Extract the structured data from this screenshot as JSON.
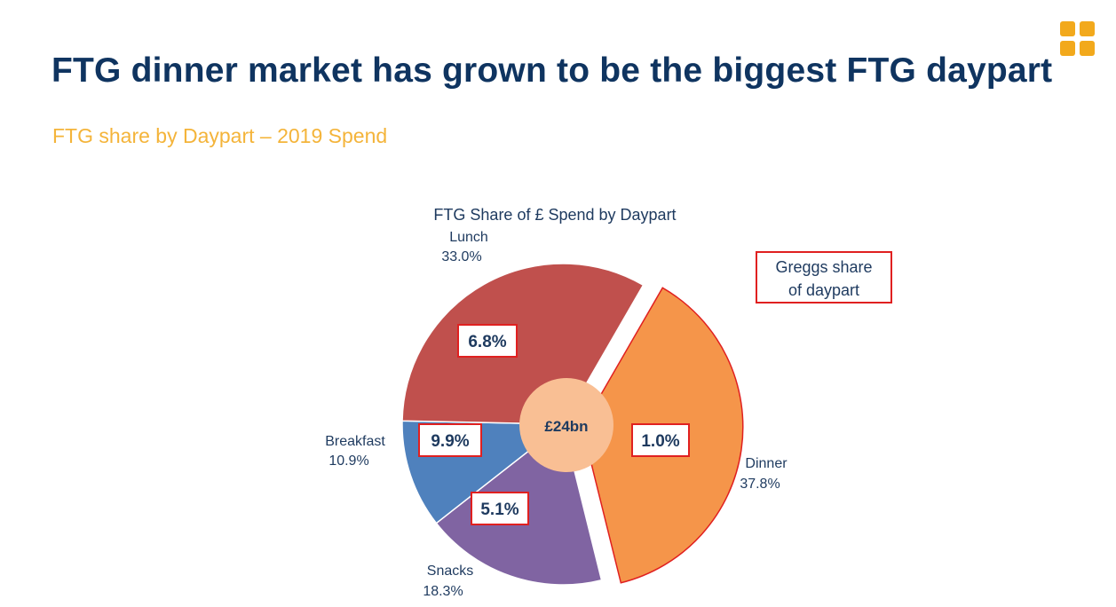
{
  "header": {
    "title": "FTG dinner market has grown to be the biggest FTG daypart",
    "subtitle": "FTG share by Daypart – 2019 Spend"
  },
  "legend_box": {
    "line1": "Greggs share",
    "line2": "of daypart"
  },
  "chart_data": {
    "type": "pie",
    "title": "FTG Share of £ Spend by Daypart",
    "center_label": "£24bn",
    "slices": [
      {
        "name": "Dinner",
        "value": 37.8,
        "label": "37.8%",
        "greggs_share": "1.0%",
        "color": "#f5954a",
        "exploded": true
      },
      {
        "name": "Snacks",
        "value": 18.3,
        "label": "18.3%",
        "greggs_share": "5.1%",
        "color": "#8064a2",
        "exploded": false
      },
      {
        "name": "Breakfast",
        "value": 10.9,
        "label": "10.9%",
        "greggs_share": "9.9%",
        "color": "#4f81bd",
        "exploded": false
      },
      {
        "name": "Lunch",
        "value": 33.0,
        "label": "33.0%",
        "greggs_share": "6.8%",
        "color": "#c0504d",
        "exploded": false
      }
    ],
    "center_color": "#f9bf94",
    "highlight_color": "#e02020",
    "text_color": "#1e3a5f"
  }
}
